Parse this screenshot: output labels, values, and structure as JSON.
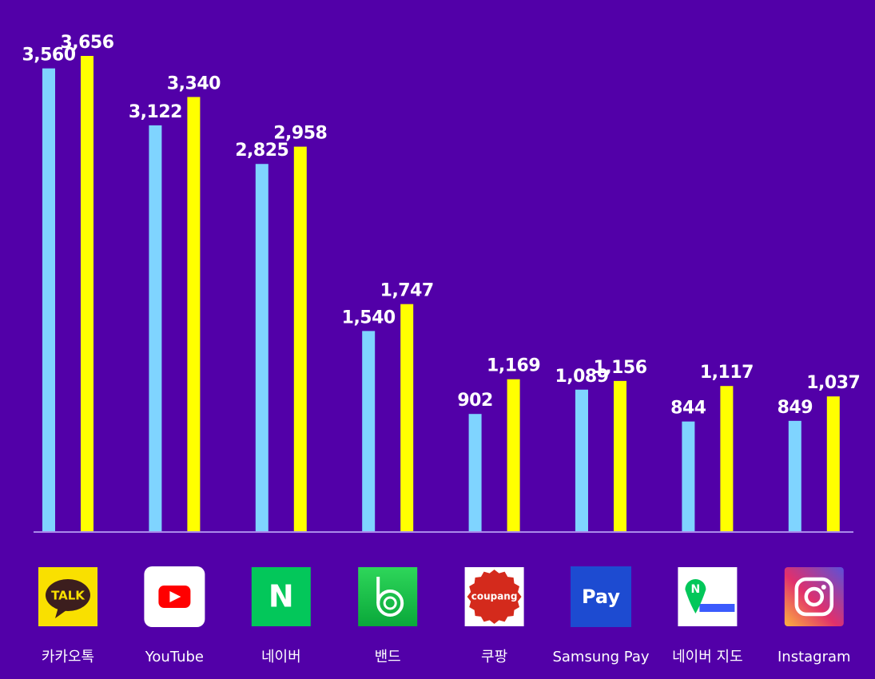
{
  "chart_data": {
    "type": "bar",
    "categories": [
      "카카오톡",
      "YouTube",
      "네이버",
      "밴드",
      "쿠팡",
      "Samsung Pay",
      "네이버 지도",
      "Instagram"
    ],
    "series": [
      {
        "color": "#7fd4ff",
        "values": [
          3560,
          3122,
          2825,
          1540,
          902,
          1089,
          844,
          849
        ],
        "value_labels": [
          "3,560",
          "3,122",
          "2,825",
          "1,540",
          "902",
          "1,089",
          "844",
          "849"
        ]
      },
      {
        "color": "#ffff00",
        "values": [
          3656,
          3340,
          2958,
          1747,
          1169,
          1156,
          1117,
          1037
        ],
        "value_labels": [
          "3,656",
          "3,340",
          "2,958",
          "1,747",
          "1,169",
          "1,156",
          "1,117",
          "1,037"
        ]
      }
    ],
    "icon_texts": [
      "TALK",
      null,
      "N",
      null,
      "coupang",
      "Pay",
      "N",
      null
    ]
  }
}
